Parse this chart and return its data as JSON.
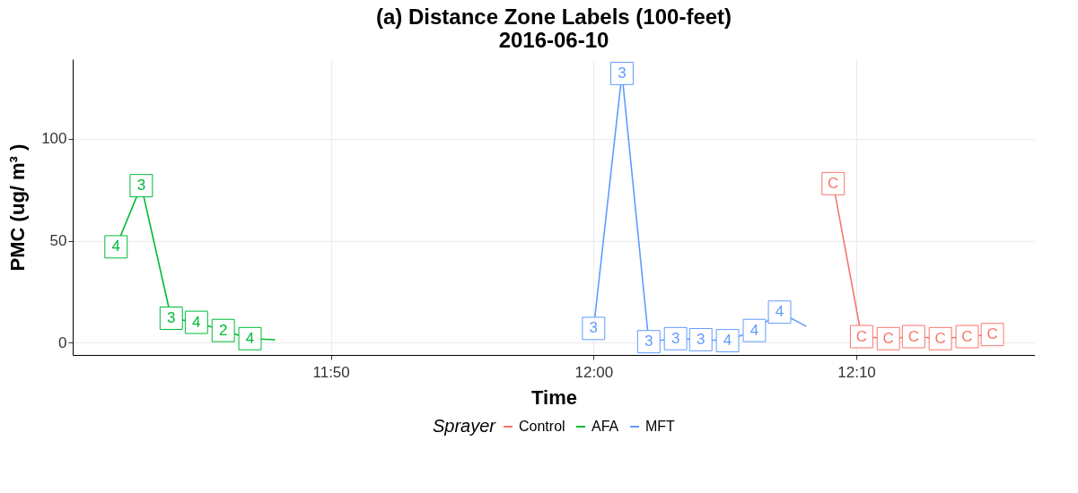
{
  "chart_data": {
    "type": "line",
    "title": "(a) Distance Zone Labels (100-feet)",
    "subtitle": "2016-06-10",
    "xlabel": "Time",
    "ylabel": "PMC (ug/ m³ )",
    "legend_title": "Sprayer",
    "xlim": [
      11.6695,
      12.28
    ],
    "xticks": [
      {
        "value": 11.8333,
        "label": "11:50"
      },
      {
        "value": 12,
        "label": "12:00"
      },
      {
        "value": 12.1667,
        "label": "12:10"
      }
    ],
    "ylim": [
      -6,
      139
    ],
    "yticks": [
      0,
      50,
      100
    ],
    "grid": true,
    "legend": "bottom",
    "marker": "square",
    "series": [
      {
        "name": "Control",
        "color": "#f8766d",
        "x": [
          12.152,
          12.17,
          12.187,
          12.203,
          12.22,
          12.237,
          12.253
        ],
        "values": [
          78,
          3,
          2,
          3,
          2,
          3,
          4
        ]
      },
      {
        "name": "AFA",
        "color": "#00ba38",
        "x": [
          11.697,
          11.713,
          11.732,
          11.748,
          11.765,
          11.782,
          11.798
        ],
        "values": [
          47,
          77,
          12,
          10,
          6,
          2,
          1.5
        ]
      },
      {
        "name": "MFT",
        "color": "#619cff",
        "x": [
          12.0,
          12.018,
          12.035,
          12.052,
          12.068,
          12.085,
          12.102,
          12.118,
          12.135
        ],
        "values": [
          7,
          132,
          0.5,
          2,
          1.5,
          1,
          6,
          15,
          8
        ]
      }
    ],
    "annotations": [
      {
        "text": "C",
        "x": 12.152,
        "y": 78
      },
      {
        "text": "C",
        "x": 12.17,
        "y": 3
      },
      {
        "text": "C",
        "x": 12.187,
        "y": 2
      },
      {
        "text": "C",
        "x": 12.203,
        "y": 3
      },
      {
        "text": "C",
        "x": 12.22,
        "y": 2
      },
      {
        "text": "C",
        "x": 12.237,
        "y": 3
      },
      {
        "text": "C",
        "x": 12.253,
        "y": 4
      },
      {
        "text": "4",
        "x": 11.697,
        "y": 47
      },
      {
        "text": "3",
        "x": 11.713,
        "y": 77
      },
      {
        "text": "3",
        "x": 11.732,
        "y": 12
      },
      {
        "text": "4",
        "x": 11.748,
        "y": 10
      },
      {
        "text": "2",
        "x": 11.765,
        "y": 6
      },
      {
        "text": "4",
        "x": 11.782,
        "y": 2
      },
      {
        "text": "3",
        "x": 12.0,
        "y": 7
      },
      {
        "text": "3",
        "x": 12.018,
        "y": 132
      },
      {
        "text": "3",
        "x": 12.035,
        "y": 0.5
      },
      {
        "text": "3",
        "x": 12.052,
        "y": 2
      },
      {
        "text": "3",
        "x": 12.068,
        "y": 1.5
      },
      {
        "text": "4",
        "x": 12.085,
        "y": 1
      },
      {
        "text": "4",
        "x": 12.102,
        "y": 6
      },
      {
        "text": "4",
        "x": 12.118,
        "y": 15
      }
    ]
  }
}
